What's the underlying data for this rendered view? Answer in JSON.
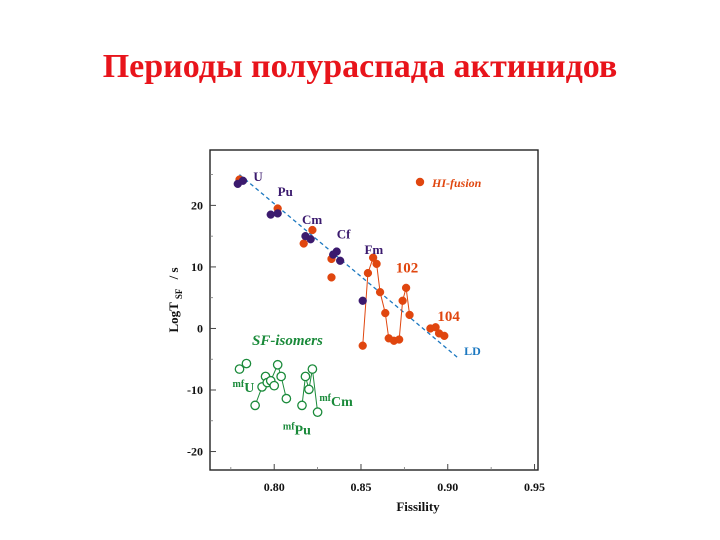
{
  "slide": {
    "title": "Периоды полураспада актинидов"
  },
  "chart_data": {
    "type": "scatter",
    "xlabel": "Fissility",
    "ylabel_main": "LogT",
    "ylabel_sub": "SF",
    "ylabel_unit": "/ s",
    "xlim": [
      0.763,
      0.952
    ],
    "ylim": [
      -23,
      29
    ],
    "x_ticks": [
      0.8,
      0.85,
      0.9,
      0.95
    ],
    "x_tick_labels": [
      "0.80",
      "0.85",
      "0.90",
      "0.95"
    ],
    "y_ticks": [
      -20,
      -10,
      0,
      10,
      20
    ],
    "y_tick_labels": [
      "-20",
      "-10",
      "0",
      "10",
      "20"
    ],
    "colors": {
      "orange": "#e0460f",
      "purple": "#3b1a6e",
      "green": "#1a8a3a",
      "blue": "#1c78c0"
    },
    "ld_line": {
      "label": "LD",
      "points": [
        [
          0.78,
          25.0
        ],
        [
          0.906,
          -4.8
        ]
      ]
    },
    "series": [
      {
        "name": "HI-fusion",
        "color": "#e0460f",
        "points": [
          [
            0.78,
            24.2
          ],
          [
            0.802,
            19.5
          ],
          [
            0.817,
            13.8
          ],
          [
            0.822,
            16.0
          ],
          [
            0.833,
            11.3
          ],
          [
            0.833,
            8.3
          ],
          [
            0.851,
            -2.8
          ],
          [
            0.854,
            9.0
          ],
          [
            0.857,
            11.5
          ],
          [
            0.859,
            10.5
          ],
          [
            0.861,
            5.9
          ],
          [
            0.864,
            2.5
          ],
          [
            0.866,
            -1.6
          ],
          [
            0.869,
            -2.0
          ],
          [
            0.872,
            -1.8
          ],
          [
            0.874,
            4.5
          ],
          [
            0.876,
            6.6
          ],
          [
            0.878,
            2.2
          ],
          [
            0.89,
            0.0
          ],
          [
            0.893,
            0.2
          ],
          [
            0.895,
            -0.8
          ],
          [
            0.898,
            -1.2
          ]
        ],
        "connected_groups": [
          [
            [
              0.851,
              -2.8
            ],
            [
              0.854,
              9.0
            ],
            [
              0.857,
              11.5
            ],
            [
              0.859,
              10.5
            ],
            [
              0.861,
              5.9
            ],
            [
              0.864,
              2.5
            ],
            [
              0.866,
              -1.6
            ],
            [
              0.869,
              -2.0
            ],
            [
              0.872,
              -1.8
            ],
            [
              0.874,
              4.5
            ],
            [
              0.876,
              6.6
            ],
            [
              0.878,
              2.2
            ]
          ],
          [
            [
              0.89,
              0.0
            ],
            [
              0.893,
              0.2
            ],
            [
              0.895,
              -0.8
            ],
            [
              0.898,
              -1.2
            ]
          ]
        ]
      },
      {
        "color": "#3b1a6e",
        "points": [
          [
            0.779,
            23.5
          ],
          [
            0.782,
            24.0
          ],
          [
            0.798,
            18.5
          ],
          [
            0.802,
            18.7
          ],
          [
            0.818,
            15.0
          ],
          [
            0.821,
            14.5
          ],
          [
            0.834,
            12.0
          ],
          [
            0.836,
            12.5
          ],
          [
            0.838,
            11.0
          ],
          [
            0.851,
            4.5
          ]
        ]
      },
      {
        "name": "SF-isomers",
        "color": "#1a8a3a",
        "points": [
          [
            0.78,
            -6.6
          ],
          [
            0.784,
            -5.7
          ],
          [
            0.789,
            -12.5
          ],
          [
            0.793,
            -9.5
          ],
          [
            0.795,
            -7.8
          ],
          [
            0.796,
            -8.8
          ],
          [
            0.798,
            -8.5
          ],
          [
            0.8,
            -9.3
          ],
          [
            0.802,
            -5.9
          ],
          [
            0.804,
            -7.8
          ],
          [
            0.807,
            -11.4
          ],
          [
            0.816,
            -12.5
          ],
          [
            0.818,
            -7.8
          ],
          [
            0.82,
            -9.9
          ],
          [
            0.822,
            -6.6
          ],
          [
            0.825,
            -13.6
          ]
        ],
        "connected_groups": [
          [
            [
              0.789,
              -12.5
            ],
            [
              0.793,
              -9.5
            ],
            [
              0.795,
              -7.8
            ],
            [
              0.796,
              -8.8
            ],
            [
              0.798,
              -8.5
            ],
            [
              0.802,
              -5.9
            ],
            [
              0.804,
              -7.8
            ],
            [
              0.807,
              -11.4
            ]
          ],
          [
            [
              0.816,
              -12.5
            ],
            [
              0.818,
              -7.8
            ],
            [
              0.82,
              -9.9
            ],
            [
              0.822,
              -6.6
            ],
            [
              0.825,
              -13.6
            ]
          ]
        ]
      }
    ],
    "annotations": [
      {
        "id": "U",
        "text": "U",
        "x": 0.788,
        "y": 24.0,
        "color": "#3b1a6e"
      },
      {
        "id": "Pu",
        "text": "Pu",
        "x": 0.802,
        "y": 21.5,
        "color": "#3b1a6e"
      },
      {
        "id": "Cm",
        "text": "Cm",
        "x": 0.816,
        "y": 17.0,
        "color": "#3b1a6e"
      },
      {
        "id": "Cf",
        "text": "Cf",
        "x": 0.836,
        "y": 14.6,
        "color": "#3b1a6e"
      },
      {
        "id": "Fm",
        "text": "Fm",
        "x": 0.852,
        "y": 12.1,
        "color": "#3b1a6e"
      },
      {
        "id": "102",
        "text": "102",
        "x": 0.87,
        "y": 9.1,
        "color": "#e0460f"
      },
      {
        "id": "104",
        "text": "104",
        "x": 0.894,
        "y": 1.2,
        "color": "#e0460f"
      }
    ],
    "isomer_labels": [
      {
        "id": "mfU",
        "sup": "mf",
        "text": "U",
        "x": 0.776,
        "y": -10.3
      },
      {
        "id": "mfPu",
        "sup": "mf",
        "text": "Pu",
        "x": 0.805,
        "y": -17.2
      },
      {
        "id": "mfCm",
        "sup": "mf",
        "text": "Cm",
        "x": 0.826,
        "y": -12.6
      }
    ]
  }
}
